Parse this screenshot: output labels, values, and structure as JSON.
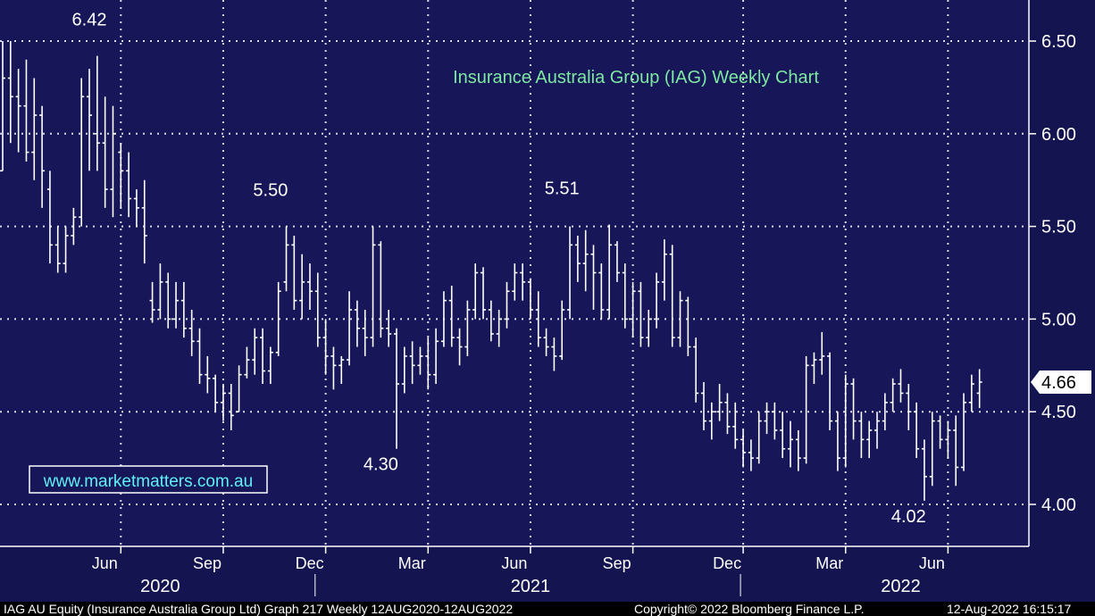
{
  "chart_data": {
    "type": "bar",
    "title": "Insurance Australia Group (IAG) Weekly Chart",
    "watermark": "www.marketmatters.com.au",
    "ylim": [
      3.76,
      6.72
    ],
    "y_ticks": [
      4.0,
      4.5,
      5.0,
      5.5,
      6.0,
      6.5
    ],
    "y_tick_labels": [
      "4.00",
      "4.50",
      "5.00",
      "5.50",
      "6.00",
      "6.50"
    ],
    "last_price": 4.66,
    "last_price_label": "4.66",
    "x_ticks": [
      {
        "label": "Jun",
        "week": 15
      },
      {
        "label": "Sep",
        "week": 28
      },
      {
        "label": "Dec",
        "week": 41
      },
      {
        "label": "Mar",
        "week": 54
      },
      {
        "label": "Jun",
        "week": 67
      },
      {
        "label": "Sep",
        "week": 80
      },
      {
        "label": "Dec",
        "week": 94
      },
      {
        "label": "Mar",
        "week": 107
      },
      {
        "label": "Jun",
        "week": 120
      }
    ],
    "years": [
      {
        "label": "2020",
        "center_week": 20
      },
      {
        "label": "2021",
        "center_week": 67
      },
      {
        "label": "2022",
        "center_week": 114
      }
    ],
    "year_dividers": [
      40,
      94
    ],
    "annotations": [
      {
        "text": "6.42",
        "week": 11,
        "value": 6.42
      },
      {
        "text": "5.50",
        "week": 34,
        "value": 5.5
      },
      {
        "text": "4.30",
        "week": 48,
        "value": 4.3
      },
      {
        "text": "5.51",
        "week": 71,
        "value": 5.51
      },
      {
        "text": "4.02",
        "week": 115,
        "value": 4.02
      }
    ],
    "ohlc": [
      [
        5.8,
        6.5,
        5.8,
        6.3
      ],
      [
        6.3,
        6.5,
        5.95,
        6.2
      ],
      [
        6.2,
        6.35,
        5.9,
        6.15
      ],
      [
        6.15,
        6.4,
        5.85,
        5.9
      ],
      [
        5.9,
        6.3,
        5.75,
        6.1
      ],
      [
        6.1,
        6.15,
        5.6,
        5.8
      ],
      [
        5.7,
        5.8,
        5.3,
        5.4
      ],
      [
        5.4,
        5.5,
        5.25,
        5.3
      ],
      [
        5.3,
        5.5,
        5.25,
        5.45
      ],
      [
        5.45,
        5.6,
        5.4,
        5.55
      ],
      [
        5.55,
        6.3,
        5.5,
        6.2
      ],
      [
        6.2,
        6.35,
        5.8,
        6.1
      ],
      [
        6.0,
        6.42,
        5.8,
        5.95
      ],
      [
        5.95,
        6.2,
        5.6,
        5.7
      ],
      [
        5.7,
        6.15,
        5.55,
        6.0
      ],
      [
        5.9,
        5.95,
        5.6,
        5.8
      ],
      [
        5.8,
        5.9,
        5.55,
        5.65
      ],
      [
        5.65,
        5.7,
        5.5,
        5.6
      ],
      [
        5.6,
        5.75,
        5.3,
        5.45
      ],
      [
        5.1,
        5.2,
        4.98,
        5.05
      ],
      [
        5.05,
        5.3,
        5.0,
        5.2
      ],
      [
        5.2,
        5.25,
        4.95,
        5.0
      ],
      [
        5.0,
        5.2,
        4.95,
        5.1
      ],
      [
        5.1,
        5.2,
        4.9,
        4.95
      ],
      [
        4.95,
        5.05,
        4.8,
        4.88
      ],
      [
        4.88,
        4.95,
        4.65,
        4.7
      ],
      [
        4.7,
        4.8,
        4.6,
        4.68
      ],
      [
        4.68,
        4.7,
        4.5,
        4.55
      ],
      [
        4.55,
        4.65,
        4.45,
        4.6
      ],
      [
        4.6,
        4.65,
        4.4,
        4.48
      ],
      [
        4.5,
        4.75,
        4.5,
        4.7
      ],
      [
        4.7,
        4.85,
        4.68,
        4.78
      ],
      [
        4.78,
        4.95,
        4.7,
        4.9
      ],
      [
        4.9,
        4.95,
        4.65,
        4.72
      ],
      [
        4.72,
        4.85,
        4.65,
        4.82
      ],
      [
        4.82,
        5.2,
        4.8,
        5.15
      ],
      [
        5.2,
        5.5,
        5.15,
        5.4
      ],
      [
        5.4,
        5.45,
        5.05,
        5.1
      ],
      [
        5.1,
        5.35,
        5.0,
        5.2
      ],
      [
        5.2,
        5.3,
        5.05,
        5.15
      ],
      [
        5.15,
        5.25,
        4.85,
        4.9
      ],
      [
        4.9,
        5.0,
        4.7,
        4.8
      ],
      [
        4.8,
        4.85,
        4.62,
        4.75
      ],
      [
        4.75,
        4.8,
        4.65,
        4.78
      ],
      [
        4.78,
        5.15,
        4.75,
        5.05
      ],
      [
        5.05,
        5.1,
        4.85,
        4.95
      ],
      [
        4.95,
        5.05,
        4.8,
        4.9
      ],
      [
        4.9,
        5.5,
        4.85,
        5.4
      ],
      [
        5.4,
        5.42,
        4.9,
        4.95
      ],
      [
        4.95,
        5.05,
        4.85,
        4.92
      ],
      [
        4.92,
        4.95,
        4.3,
        4.65
      ],
      [
        4.65,
        4.85,
        4.6,
        4.8
      ],
      [
        4.8,
        4.88,
        4.65,
        4.75
      ],
      [
        4.75,
        4.85,
        4.7,
        4.8
      ],
      [
        4.8,
        4.9,
        4.62,
        4.7
      ],
      [
        4.7,
        4.95,
        4.65,
        4.88
      ],
      [
        4.88,
        5.15,
        4.85,
        5.1
      ],
      [
        5.1,
        5.18,
        4.85,
        4.9
      ],
      [
        4.9,
        4.95,
        4.75,
        4.85
      ],
      [
        4.85,
        5.1,
        4.8,
        5.05
      ],
      [
        5.05,
        5.3,
        5.0,
        5.25
      ],
      [
        5.25,
        5.28,
        5.0,
        5.05
      ],
      [
        5.05,
        5.1,
        4.88,
        4.92
      ],
      [
        4.92,
        5.05,
        4.85,
        5.0
      ],
      [
        5.0,
        5.2,
        4.95,
        5.15
      ],
      [
        5.15,
        5.3,
        5.1,
        5.25
      ],
      [
        5.25,
        5.3,
        5.1,
        5.2
      ],
      [
        5.2,
        5.22,
        5.0,
        5.05
      ],
      [
        5.05,
        5.15,
        4.85,
        4.9
      ],
      [
        4.9,
        4.95,
        4.8,
        4.85
      ],
      [
        4.85,
        4.9,
        4.72,
        4.8
      ],
      [
        4.8,
        5.1,
        4.78,
        5.05
      ],
      [
        5.05,
        5.5,
        5.0,
        5.4
      ],
      [
        5.4,
        5.45,
        5.2,
        5.3
      ],
      [
        5.3,
        5.48,
        5.15,
        5.35
      ],
      [
        5.35,
        5.4,
        5.05,
        5.25
      ],
      [
        5.25,
        5.3,
        5.0,
        5.05
      ],
      [
        5.05,
        5.51,
        5.0,
        5.4
      ],
      [
        5.4,
        5.42,
        5.2,
        5.25
      ],
      [
        5.25,
        5.3,
        4.95,
        5.0
      ],
      [
        5.0,
        5.2,
        4.9,
        5.15
      ],
      [
        5.15,
        5.2,
        4.85,
        4.9
      ],
      [
        4.9,
        5.05,
        4.85,
        5.0
      ],
      [
        5.0,
        5.25,
        4.95,
        5.2
      ],
      [
        5.2,
        5.43,
        5.1,
        5.35
      ],
      [
        5.35,
        5.4,
        4.85,
        4.9
      ],
      [
        4.9,
        5.15,
        4.85,
        5.1
      ],
      [
        5.1,
        5.12,
        4.8,
        4.85
      ],
      [
        4.85,
        4.9,
        4.55,
        4.6
      ],
      [
        4.6,
        4.66,
        4.4,
        4.45
      ],
      [
        4.45,
        4.55,
        4.35,
        4.5
      ],
      [
        4.5,
        4.65,
        4.45,
        4.55
      ],
      [
        4.55,
        4.6,
        4.38,
        4.42
      ],
      [
        4.42,
        4.55,
        4.3,
        4.35
      ],
      [
        4.35,
        4.4,
        4.2,
        4.28
      ],
      [
        4.28,
        4.35,
        4.18,
        4.25
      ],
      [
        4.25,
        4.5,
        4.22,
        4.45
      ],
      [
        4.45,
        4.55,
        4.38,
        4.5
      ],
      [
        4.5,
        4.55,
        4.35,
        4.4
      ],
      [
        4.4,
        4.5,
        4.25,
        4.3
      ],
      [
        4.3,
        4.45,
        4.2,
        4.35
      ],
      [
        4.35,
        4.4,
        4.18,
        4.25
      ],
      [
        4.25,
        4.8,
        4.22,
        4.75
      ],
      [
        4.75,
        4.82,
        4.65,
        4.78
      ],
      [
        4.78,
        4.93,
        4.7,
        4.8
      ],
      [
        4.8,
        4.82,
        4.4,
        4.45
      ],
      [
        4.45,
        4.5,
        4.18,
        4.25
      ],
      [
        4.25,
        4.7,
        4.2,
        4.65
      ],
      [
        4.65,
        4.68,
        4.35,
        4.45
      ],
      [
        4.45,
        4.5,
        4.25,
        4.35
      ],
      [
        4.35,
        4.45,
        4.25,
        4.4
      ],
      [
        4.4,
        4.5,
        4.3,
        4.45
      ],
      [
        4.45,
        4.6,
        4.4,
        4.55
      ],
      [
        4.55,
        4.68,
        4.5,
        4.65
      ],
      [
        4.65,
        4.73,
        4.55,
        4.6
      ],
      [
        4.6,
        4.65,
        4.4,
        4.5
      ],
      [
        4.5,
        4.55,
        4.25,
        4.3
      ],
      [
        4.3,
        4.35,
        4.02,
        4.15
      ],
      [
        4.15,
        4.5,
        4.1,
        4.45
      ],
      [
        4.45,
        4.48,
        4.3,
        4.35
      ],
      [
        4.35,
        4.45,
        4.25,
        4.4
      ],
      [
        4.4,
        4.48,
        4.1,
        4.2
      ],
      [
        4.2,
        4.6,
        4.18,
        4.55
      ],
      [
        4.55,
        4.7,
        4.5,
        4.65
      ],
      [
        4.6,
        4.73,
        4.52,
        4.66
      ]
    ]
  },
  "footer": {
    "left": "IAG AU Equity (Insurance Australia Group Ltd) Graph 217  Weekly 12AUG2020-12AUG2022",
    "mid": "Copyright© 2022 Bloomberg Finance L.P.",
    "right": "12-Aug-2022 16:15:17"
  },
  "colors": {
    "background": "#141450",
    "plot_area": "#161659",
    "bars": "#ffffff",
    "grid": "#d8d8e8",
    "title": "#7ee8a0",
    "watermark": "#5ff0f5"
  }
}
